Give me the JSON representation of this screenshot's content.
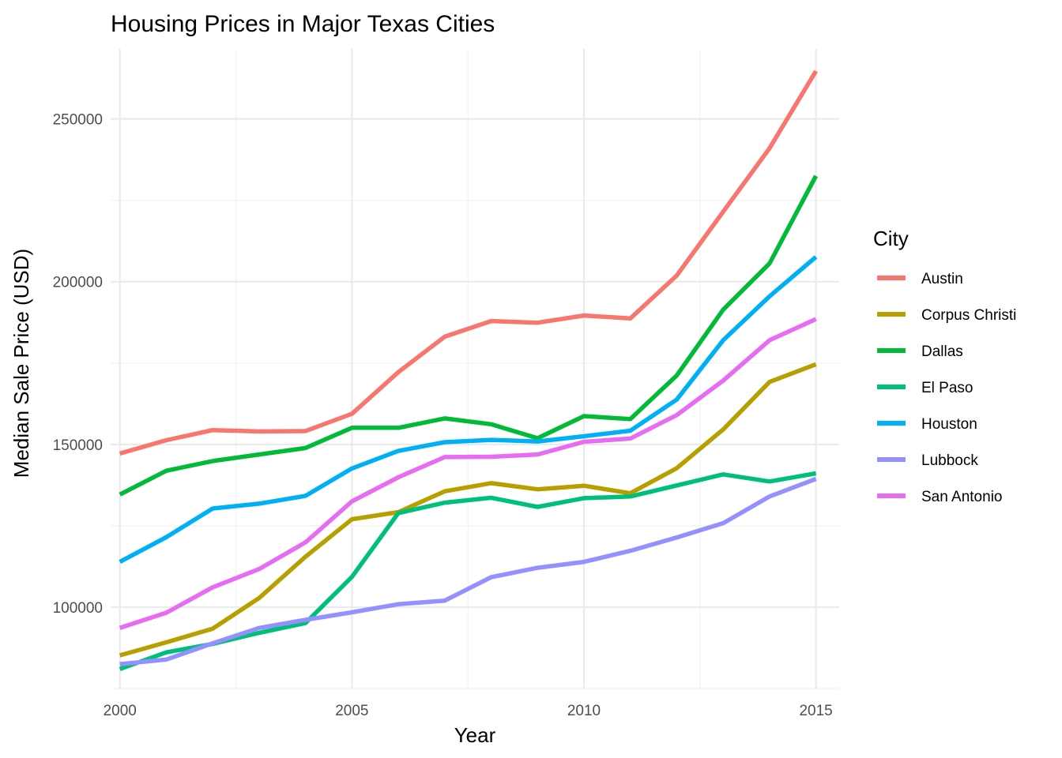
{
  "chart_data": {
    "type": "line",
    "title": "Housing Prices in Major Texas Cities",
    "xlabel": "Year",
    "ylabel": "Median Sale Price (USD)",
    "legend_title": "City",
    "legend_position": "right",
    "grid": true,
    "xlim": [
      1999.8,
      2015.5
    ],
    "ylim": [
      75000,
      271500
    ],
    "x_ticks": [
      2000,
      2005,
      2010,
      2015
    ],
    "y_ticks": [
      100000,
      150000,
      200000,
      250000
    ],
    "x": [
      2000,
      2001,
      2002,
      2003,
      2004,
      2005,
      2006,
      2007,
      2008,
      2009,
      2010,
      2011,
      2012,
      2013,
      2014,
      2015
    ],
    "series": [
      {
        "name": "Austin",
        "color": "#F8766D",
        "values": [
          147200,
          151300,
          154400,
          154000,
          154100,
          159400,
          172200,
          183100,
          187900,
          187400,
          189600,
          188700,
          201900,
          221500,
          241000,
          264700
        ]
      },
      {
        "name": "Corpus Christi",
        "color": "#B79F00",
        "values": [
          85200,
          89200,
          93400,
          102800,
          115500,
          127000,
          129200,
          135600,
          138100,
          136200,
          137300,
          135000,
          142700,
          154600,
          169200,
          174600
        ]
      },
      {
        "name": "Dallas",
        "color": "#00BA38",
        "values": [
          134600,
          141900,
          144900,
          146900,
          148900,
          155100,
          155100,
          158000,
          156200,
          151900,
          158700,
          157800,
          171200,
          191400,
          205600,
          232500
        ]
      },
      {
        "name": "El Paso",
        "color": "#00BF7D",
        "values": [
          81000,
          86100,
          88700,
          92100,
          95100,
          109300,
          128900,
          132100,
          133600,
          130800,
          133500,
          134000,
          137400,
          140800,
          138600,
          141100
        ]
      },
      {
        "name": "Houston",
        "color": "#00B0F6",
        "values": [
          113900,
          121500,
          130300,
          131800,
          134200,
          142600,
          148000,
          150700,
          151400,
          150900,
          152500,
          154200,
          163800,
          182000,
          195500,
          207600
        ]
      },
      {
        "name": "Lubbock",
        "color": "#9590FF",
        "values": [
          82500,
          83900,
          88900,
          93600,
          96100,
          98400,
          100900,
          102000,
          109200,
          112100,
          113900,
          117300,
          121400,
          125800,
          134000,
          139400
        ]
      },
      {
        "name": "San Antonio",
        "color": "#E76BF3",
        "values": [
          93600,
          98300,
          106100,
          111700,
          119900,
          132500,
          139900,
          146100,
          146200,
          146900,
          150800,
          151800,
          159000,
          169600,
          182000,
          188500
        ]
      }
    ]
  }
}
